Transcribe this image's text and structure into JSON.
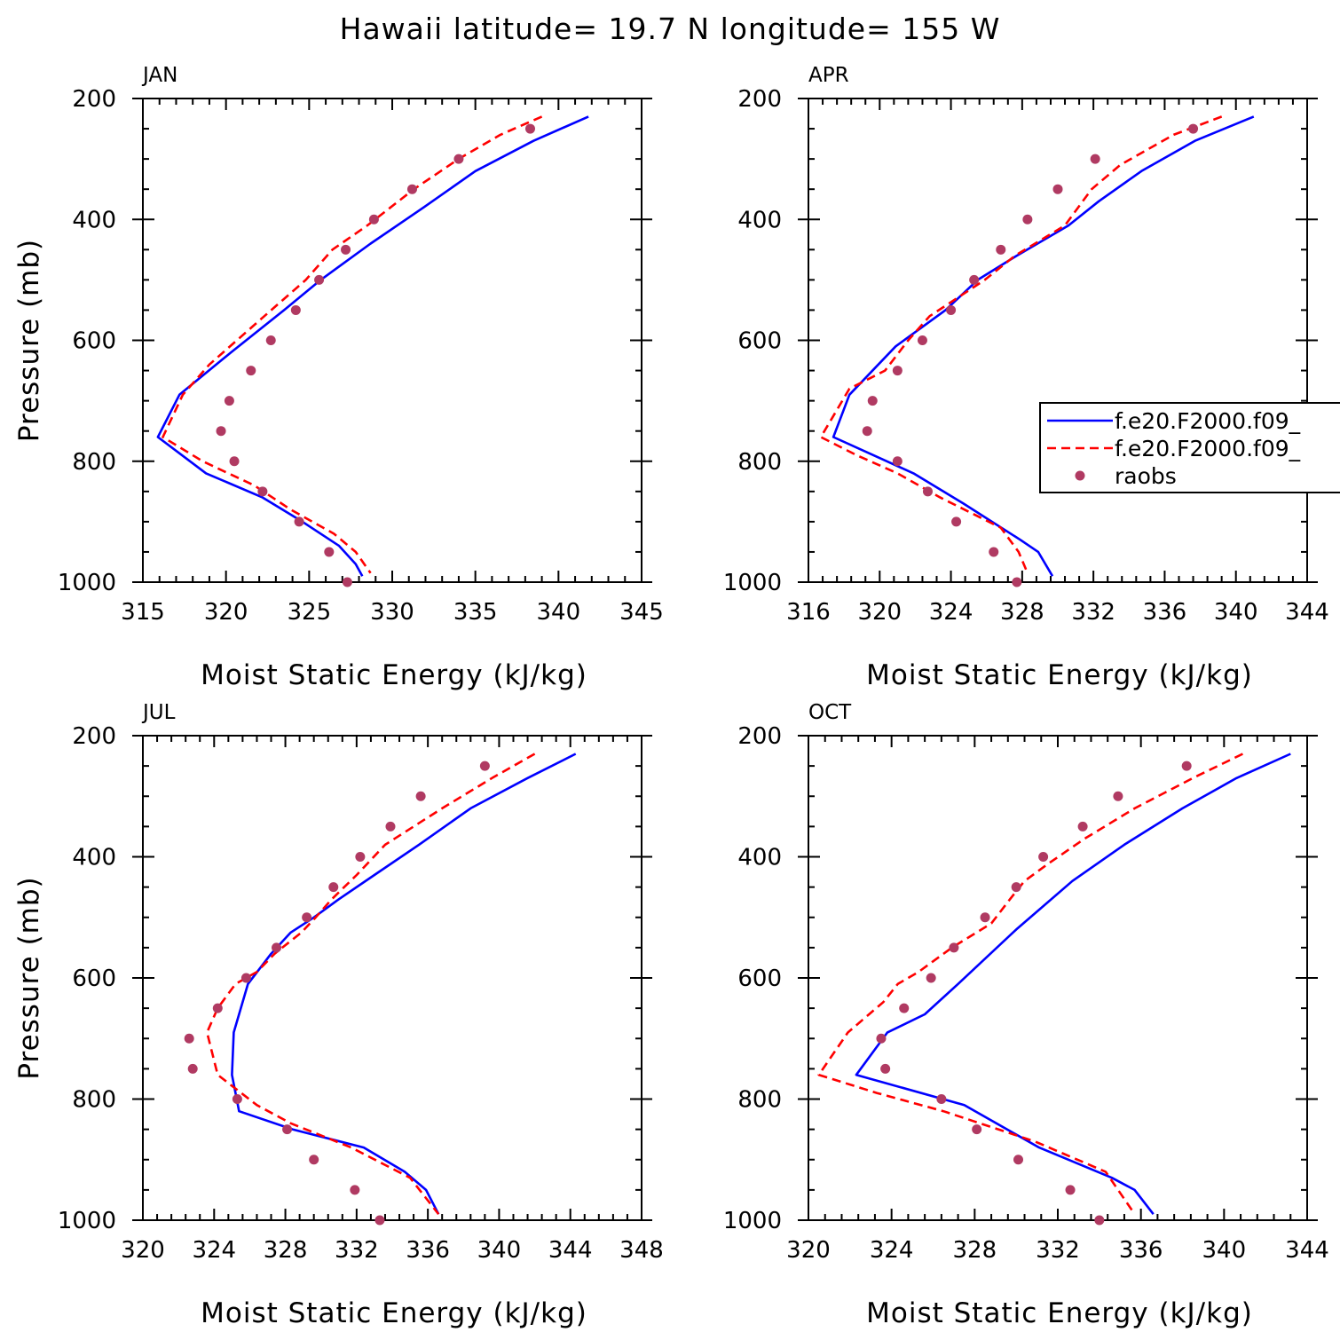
{
  "figure": {
    "title": "Hawaii  latitude= 19.7 N longitude= 155 W"
  },
  "legend": {
    "entries": [
      {
        "label": "f.e20.F2000.f09_",
        "color": "#0000ff",
        "style": "solid"
      },
      {
        "label": "f.e20.F2000.f09_",
        "color": "#ff0000",
        "style": "dashed"
      },
      {
        "label": "raobs",
        "color": "#b03a62",
        "style": "marker"
      }
    ]
  },
  "chart_data": [
    {
      "type": "line",
      "panel": "JAN",
      "xlabel": "Moist Static Energy (kJ/kg)",
      "ylabel": "Pressure (mb)",
      "xlim": [
        315,
        345
      ],
      "xticks": [
        315,
        320,
        325,
        330,
        335,
        340,
        345
      ],
      "ylim": [
        1000,
        200
      ],
      "yticks": [
        200,
        400,
        600,
        800,
        1000
      ],
      "series": [
        {
          "color": "#0000ff",
          "style": "solid",
          "points": [
            [
              341.8,
              230
            ],
            [
              338.5,
              270
            ],
            [
              335,
              320
            ],
            [
              331.9,
              380
            ],
            [
              328.7,
              440
            ],
            [
              325.7,
              500
            ],
            [
              323.5,
              550
            ],
            [
              320.3,
              620
            ],
            [
              317.2,
              690
            ],
            [
              315.9,
              760
            ],
            [
              318.8,
              820
            ],
            [
              322.2,
              860
            ],
            [
              324.6,
              900
            ],
            [
              326.8,
              940
            ],
            [
              327.8,
              970
            ],
            [
              328.2,
              990
            ]
          ]
        },
        {
          "color": "#ff0000",
          "style": "dashed",
          "points": [
            [
              339,
              230
            ],
            [
              336.5,
              260
            ],
            [
              334,
              300
            ],
            [
              331.3,
              350
            ],
            [
              328.5,
              410
            ],
            [
              326.4,
              450
            ],
            [
              324.8,
              500
            ],
            [
              322.3,
              560
            ],
            [
              319,
              640
            ],
            [
              317.4,
              690
            ],
            [
              316.2,
              760
            ],
            [
              318.6,
              800
            ],
            [
              321.7,
              840
            ],
            [
              323.9,
              880
            ],
            [
              326.5,
              920
            ],
            [
              327.8,
              950
            ],
            [
              328.7,
              985
            ]
          ]
        },
        {
          "color": "#b03a62",
          "style": "marker",
          "points": [
            [
              338.3,
              250
            ],
            [
              334,
              300
            ],
            [
              331.2,
              350
            ],
            [
              328.9,
              400
            ],
            [
              327.2,
              450
            ],
            [
              325.6,
              500
            ],
            [
              324.2,
              550
            ],
            [
              322.7,
              600
            ],
            [
              321.5,
              650
            ],
            [
              320.2,
              700
            ],
            [
              319.7,
              750
            ],
            [
              320.5,
              800
            ],
            [
              322.2,
              850
            ],
            [
              324.4,
              900
            ],
            [
              326.2,
              950
            ],
            [
              327.3,
              1000
            ]
          ]
        }
      ]
    },
    {
      "type": "line",
      "panel": "APR",
      "xlabel": "Moist Static Energy (kJ/kg)",
      "ylabel": "",
      "xlim": [
        316,
        344
      ],
      "xticks": [
        316,
        320,
        324,
        328,
        332,
        336,
        340,
        344
      ],
      "ylim": [
        1000,
        200
      ],
      "yticks": [
        200,
        400,
        600,
        800,
        1000
      ],
      "series": [
        {
          "color": "#0000ff",
          "style": "solid",
          "points": [
            [
              341,
              230
            ],
            [
              337.7,
              270
            ],
            [
              334.7,
              320
            ],
            [
              332.3,
              370
            ],
            [
              330.6,
              410
            ],
            [
              327.7,
              460
            ],
            [
              325.5,
              500
            ],
            [
              323.7,
              550
            ],
            [
              320.9,
              610
            ],
            [
              318.3,
              690
            ],
            [
              317.4,
              760
            ],
            [
              321.9,
              820
            ],
            [
              324.7,
              870
            ],
            [
              327.9,
              930
            ],
            [
              328.9,
              950
            ],
            [
              329.7,
              990
            ]
          ]
        },
        {
          "color": "#ff0000",
          "style": "dashed",
          "points": [
            [
              339.2,
              230
            ],
            [
              336.5,
              260
            ],
            [
              333.5,
              310
            ],
            [
              331.9,
              350
            ],
            [
              330.4,
              410
            ],
            [
              327.6,
              460
            ],
            [
              325.9,
              500
            ],
            [
              322.8,
              560
            ],
            [
              321.6,
              600
            ],
            [
              320.3,
              650
            ],
            [
              318.3,
              680
            ],
            [
              317.5,
              720
            ],
            [
              316.7,
              760
            ],
            [
              318.7,
              790
            ],
            [
              321,
              820
            ],
            [
              323.4,
              860
            ],
            [
              326.8,
              910
            ],
            [
              327.8,
              950
            ],
            [
              328.3,
              985
            ]
          ]
        },
        {
          "color": "#b03a62",
          "style": "marker",
          "points": [
            [
              337.6,
              250
            ],
            [
              332.1,
              300
            ],
            [
              330,
              350
            ],
            [
              328.3,
              400
            ],
            [
              326.8,
              450
            ],
            [
              325.3,
              500
            ],
            [
              324,
              550
            ],
            [
              322.4,
              600
            ],
            [
              321,
              650
            ],
            [
              319.6,
              700
            ],
            [
              319.3,
              750
            ],
            [
              321,
              800
            ],
            [
              322.7,
              850
            ],
            [
              324.3,
              900
            ],
            [
              326.4,
              950
            ],
            [
              327.7,
              1000
            ]
          ]
        }
      ]
    },
    {
      "type": "line",
      "panel": "JUL",
      "xlabel": "Moist Static Energy (kJ/kg)",
      "ylabel": "Pressure (mb)",
      "xlim": [
        320,
        348
      ],
      "xticks": [
        320,
        324,
        328,
        332,
        336,
        340,
        344,
        348
      ],
      "ylim": [
        1000,
        200
      ],
      "yticks": [
        200,
        400,
        600,
        800,
        1000
      ],
      "series": [
        {
          "color": "#0000ff",
          "style": "solid",
          "points": [
            [
              344.3,
              230
            ],
            [
              341.6,
              270
            ],
            [
              338.4,
              320
            ],
            [
              335.5,
              380
            ],
            [
              333,
              430
            ],
            [
              331,
              470
            ],
            [
              329.6,
              500
            ],
            [
              328.3,
              525
            ],
            [
              327.2,
              560
            ],
            [
              325.9,
              610
            ],
            [
              325.1,
              690
            ],
            [
              325,
              760
            ],
            [
              325.4,
              820
            ],
            [
              328.4,
              850
            ],
            [
              332.4,
              880
            ],
            [
              334.7,
              920
            ],
            [
              335.9,
              950
            ],
            [
              336.6,
              990
            ]
          ]
        },
        {
          "color": "#ff0000",
          "style": "dashed",
          "points": [
            [
              342,
              230
            ],
            [
              339.6,
              270
            ],
            [
              336.8,
              320
            ],
            [
              333.6,
              380
            ],
            [
              332,
              430
            ],
            [
              330.6,
              470
            ],
            [
              329.7,
              500
            ],
            [
              328.9,
              525
            ],
            [
              327.4,
              560
            ],
            [
              326.4,
              590
            ],
            [
              325.2,
              610
            ],
            [
              324.2,
              650
            ],
            [
              323.6,
              690
            ],
            [
              324.2,
              760
            ],
            [
              326.4,
              810
            ],
            [
              328.3,
              840
            ],
            [
              331.7,
              880
            ],
            [
              335,
              930
            ],
            [
              336.6,
              990
            ]
          ]
        },
        {
          "color": "#b03a62",
          "style": "marker",
          "points": [
            [
              339.2,
              250
            ],
            [
              335.6,
              300
            ],
            [
              333.9,
              350
            ],
            [
              332.2,
              400
            ],
            [
              330.7,
              450
            ],
            [
              329.2,
              500
            ],
            [
              327.5,
              550
            ],
            [
              325.8,
              600
            ],
            [
              324.2,
              650
            ],
            [
              322.6,
              700
            ],
            [
              322.8,
              750
            ],
            [
              325.3,
              800
            ],
            [
              328.1,
              850
            ],
            [
              329.6,
              900
            ],
            [
              331.9,
              950
            ],
            [
              333.3,
              1000
            ]
          ]
        }
      ]
    },
    {
      "type": "line",
      "panel": "OCT",
      "xlabel": "Moist Static Energy (kJ/kg)",
      "ylabel": "",
      "xlim": [
        320,
        344
      ],
      "xticks": [
        320,
        324,
        328,
        332,
        336,
        340,
        344
      ],
      "ylim": [
        1000,
        200
      ],
      "yticks": [
        200,
        400,
        600,
        800,
        1000
      ],
      "series": [
        {
          "color": "#0000ff",
          "style": "solid",
          "points": [
            [
              343.2,
              230
            ],
            [
              340.6,
              270
            ],
            [
              338,
              320
            ],
            [
              335.2,
              380
            ],
            [
              332.7,
              440
            ],
            [
              330,
              520
            ],
            [
              327.2,
              610
            ],
            [
              325.6,
              660
            ],
            [
              323.8,
              690
            ],
            [
              322.3,
              760
            ],
            [
              327.5,
              810
            ],
            [
              331.1,
              880
            ],
            [
              334.6,
              930
            ],
            [
              335.7,
              950
            ],
            [
              336.6,
              990
            ]
          ]
        },
        {
          "color": "#ff0000",
          "style": "dashed",
          "points": [
            [
              340.9,
              230
            ],
            [
              338.5,
              270
            ],
            [
              335.7,
              320
            ],
            [
              333.3,
              370
            ],
            [
              331.6,
              410
            ],
            [
              330.4,
              440
            ],
            [
              329.7,
              470
            ],
            [
              328.8,
              510
            ],
            [
              326.9,
              550
            ],
            [
              325.3,
              590
            ],
            [
              324.3,
              610
            ],
            [
              323.6,
              640
            ],
            [
              321.9,
              690
            ],
            [
              320.5,
              760
            ],
            [
              323.3,
              790
            ],
            [
              326.5,
              820
            ],
            [
              330.9,
              870
            ],
            [
              334.3,
              920
            ],
            [
              335.6,
              985
            ]
          ]
        },
        {
          "color": "#b03a62",
          "style": "marker",
          "points": [
            [
              338.2,
              250
            ],
            [
              334.9,
              300
            ],
            [
              333.2,
              350
            ],
            [
              331.3,
              400
            ],
            [
              330,
              450
            ],
            [
              328.5,
              500
            ],
            [
              327,
              550
            ],
            [
              325.9,
              600
            ],
            [
              324.6,
              650
            ],
            [
              323.5,
              700
            ],
            [
              323.7,
              750
            ],
            [
              326.4,
              800
            ],
            [
              328.1,
              850
            ],
            [
              330.1,
              900
            ],
            [
              332.6,
              950
            ],
            [
              334,
              1000
            ]
          ]
        }
      ]
    }
  ]
}
